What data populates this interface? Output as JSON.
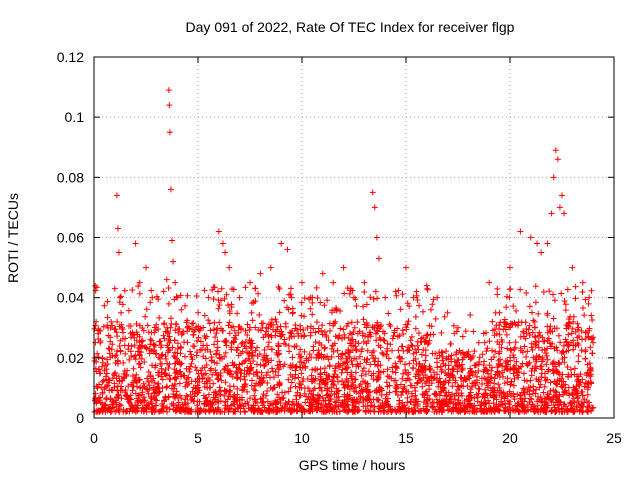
{
  "chart_data": {
    "type": "scatter",
    "title": "Day 091 of 2022, Rate Of TEC Index for receiver flgp",
    "xlabel": "GPS time / hours",
    "ylabel": "ROTI / TECUs",
    "xlim": [
      0,
      25
    ],
    "ylim": [
      0,
      0.12
    ],
    "x_ticks": [
      "0",
      "5",
      "10",
      "15",
      "20",
      "25"
    ],
    "y_ticks": [
      "0",
      "0.02",
      "0.04",
      "0.06",
      "0.08",
      "0.1",
      "0.12"
    ],
    "grid": true,
    "marker": "plus",
    "color": "#ff0000",
    "series": [
      {
        "name": "ROTI",
        "x": [
          0.1,
          0.2,
          0.3,
          1.0,
          1.1,
          1.15,
          1.2,
          1.25,
          1.3,
          1.35,
          2.0,
          2.2,
          2.5,
          2.8,
          3.5,
          3.6,
          3.62,
          3.65,
          3.7,
          3.75,
          3.8,
          3.9,
          4.0,
          4.2,
          4.5,
          5.0,
          5.5,
          6.0,
          6.2,
          6.3,
          6.5,
          7.0,
          7.5,
          8.0,
          8.5,
          9.0,
          9.3,
          9.5,
          10.0,
          10.5,
          11.0,
          11.5,
          12.0,
          12.5,
          13.0,
          13.4,
          13.5,
          13.6,
          13.7,
          14.0,
          14.5,
          15.0,
          15.5,
          16.0,
          16.5,
          17.0,
          17.5,
          18.0,
          18.5,
          19.0,
          19.5,
          20.0,
          20.5,
          21.0,
          21.3,
          21.5,
          21.8,
          22.0,
          22.1,
          22.2,
          22.3,
          22.4,
          22.5,
          22.6,
          23.0,
          23.5,
          23.8
        ],
        "y": [
          0.032,
          0.028,
          0.025,
          0.043,
          0.074,
          0.063,
          0.055,
          0.04,
          0.035,
          0.03,
          0.058,
          0.045,
          0.05,
          0.04,
          0.046,
          0.109,
          0.104,
          0.095,
          0.076,
          0.059,
          0.052,
          0.045,
          0.04,
          0.036,
          0.03,
          0.035,
          0.04,
          0.062,
          0.058,
          0.055,
          0.05,
          0.04,
          0.045,
          0.048,
          0.05,
          0.058,
          0.056,
          0.04,
          0.045,
          0.04,
          0.048,
          0.045,
          0.05,
          0.04,
          0.045,
          0.075,
          0.07,
          0.06,
          0.053,
          0.04,
          0.042,
          0.05,
          0.042,
          0.044,
          0.04,
          0.035,
          0.03,
          0.022,
          0.025,
          0.045,
          0.035,
          0.05,
          0.062,
          0.06,
          0.058,
          0.055,
          0.058,
          0.068,
          0.08,
          0.089,
          0.086,
          0.07,
          0.074,
          0.068,
          0.05,
          0.045,
          0.04
        ],
        "background_band": {
          "min": 0.002,
          "max": 0.032,
          "density": "very high"
        }
      }
    ]
  }
}
